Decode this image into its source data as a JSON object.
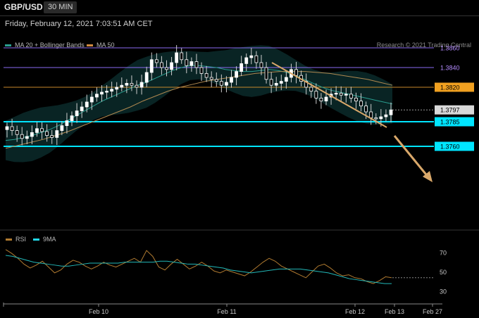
{
  "header": {
    "symbol": "GBP/USD",
    "timeframe": "30 MIN",
    "datetime": "Friday, February 12, 2021 7:03:51 AM CET",
    "credit": "Research © 2021 Trading Central"
  },
  "legend": {
    "ma20": "MA 20 + Bollinger Bands",
    "ma50": "MA 50",
    "rsi": "RSI",
    "rsi9": "9MA"
  },
  "colors": {
    "bg": "#000000",
    "candle": "#ffffff",
    "ma20": "#2a9d8f",
    "ma50": "#b08850",
    "band": "#0b2a2a",
    "resistance_purple": "#6a5acd",
    "resistance_orange": "#e0a040",
    "support_cyan": "#00e5ff",
    "trend_arrow": "#d9a86a",
    "rsi": "#b07a30",
    "rsi_ma": "#22b8b8"
  },
  "chart_data": [
    {
      "type": "line",
      "title": "GBP/USD",
      "x_labels": [
        "Feb 10",
        "Feb 11",
        "Feb 12",
        "Feb 13",
        "Feb 27"
      ],
      "ylim": [
        1.3685,
        1.3875
      ],
      "levels": [
        {
          "value": 1.386,
          "label": "1.3860",
          "kind": "resistance",
          "color": "#8a6af0"
        },
        {
          "value": 1.384,
          "label": "1.3840",
          "kind": "resistance",
          "color": "#8a6af0"
        },
        {
          "value": 1.382,
          "label": "1.3820",
          "kind": "pivot",
          "color": "#f0a020"
        },
        {
          "value": 1.3797,
          "label": "1.3797",
          "kind": "last",
          "color": "#cccccc"
        },
        {
          "value": 1.3785,
          "label": "1.3785",
          "kind": "support",
          "color": "#00e5ff"
        },
        {
          "value": 1.376,
          "label": "1.3760",
          "kind": "support",
          "color": "#00e5ff"
        }
      ],
      "series": [
        {
          "name": "GBP/USD",
          "values": [
            1.378,
            1.3776,
            1.3772,
            1.3768,
            1.377,
            1.3774,
            1.3778,
            1.3775,
            1.3771,
            1.3769,
            1.3776,
            1.3781,
            1.3786,
            1.3791,
            1.3796,
            1.38,
            1.3805,
            1.381,
            1.3813,
            1.3815,
            1.3816,
            1.3818,
            1.382,
            1.3822,
            1.3824,
            1.3822,
            1.382,
            1.3825,
            1.3835,
            1.3848,
            1.3845,
            1.384,
            1.3838,
            1.3845,
            1.3855,
            1.3848,
            1.3842,
            1.3846,
            1.384,
            1.3834,
            1.383,
            1.3828,
            1.3826,
            1.3822,
            1.3825,
            1.383,
            1.3836,
            1.3844,
            1.385,
            1.3852,
            1.3845,
            1.384,
            1.3828,
            1.3822,
            1.3824,
            1.3826,
            1.383,
            1.3838,
            1.3832,
            1.3826,
            1.382,
            1.3816,
            1.3809,
            1.3806,
            1.381,
            1.3813,
            1.3814,
            1.3812,
            1.3813,
            1.3809,
            1.3806,
            1.3801,
            1.3795,
            1.3789,
            1.3788,
            1.379,
            1.3792,
            1.3797
          ]
        },
        {
          "name": "MA 20",
          "values": [
            1.3766,
            1.3767,
            1.3769,
            1.3771,
            1.3774,
            1.3777,
            1.3781,
            1.3786,
            1.3791,
            1.3796,
            1.3801,
            1.3806,
            1.381,
            1.3814,
            1.3818,
            1.3822,
            1.3825,
            1.3829,
            1.3833,
            1.3837,
            1.384,
            1.3842,
            1.3842,
            1.3841,
            1.384,
            1.3838,
            1.3837,
            1.3836,
            1.3836,
            1.3837,
            1.3838,
            1.3837,
            1.3835,
            1.3832,
            1.3828,
            1.3824,
            1.382,
            1.3817,
            1.3815,
            1.3813,
            1.3811,
            1.3809,
            1.3807,
            1.3805,
            1.3803
          ]
        },
        {
          "name": "MA 50",
          "values": [
            1.3758,
            1.3761,
            1.3764,
            1.3767,
            1.3771,
            1.3775,
            1.378,
            1.3785,
            1.379,
            1.3795,
            1.38,
            1.3806,
            1.3811,
            1.3816,
            1.382,
            1.3823,
            1.3826,
            1.3828,
            1.383,
            1.3832,
            1.3834,
            1.3835,
            1.3836,
            1.3836,
            1.3836,
            1.3835,
            1.3834,
            1.3832,
            1.383,
            1.3828,
            1.3825,
            1.3822
          ]
        }
      ]
    },
    {
      "type": "line",
      "title": "RSI",
      "yticks": [
        70,
        50,
        30
      ],
      "ylim": [
        20,
        80
      ],
      "series": [
        {
          "name": "RSI",
          "values": [
            73,
            69,
            64,
            58,
            54,
            57,
            61,
            55,
            49,
            52,
            58,
            62,
            60,
            56,
            53,
            56,
            60,
            57,
            55,
            58,
            61,
            64,
            60,
            72,
            66,
            55,
            52,
            58,
            63,
            58,
            53,
            56,
            60,
            56,
            51,
            49,
            52,
            50,
            48,
            46,
            50,
            55,
            60,
            64,
            61,
            56,
            53,
            50,
            47,
            44,
            50,
            56,
            58,
            54,
            49,
            46,
            47,
            44,
            43,
            40,
            38,
            41,
            45,
            44
          ]
        },
        {
          "name": "9MA",
          "values": [
            67,
            66,
            64,
            62,
            60,
            59,
            58,
            57,
            56,
            56,
            57,
            58,
            59,
            59,
            59,
            59,
            59,
            60,
            60,
            60,
            60,
            60,
            61,
            61,
            60,
            59,
            58,
            58,
            57,
            56,
            55,
            54,
            52,
            51,
            50,
            49,
            50,
            51,
            52,
            53,
            53,
            53,
            53,
            52,
            51,
            50,
            49,
            47,
            45,
            43,
            42,
            41,
            40,
            39,
            38,
            38
          ]
        }
      ]
    }
  ]
}
